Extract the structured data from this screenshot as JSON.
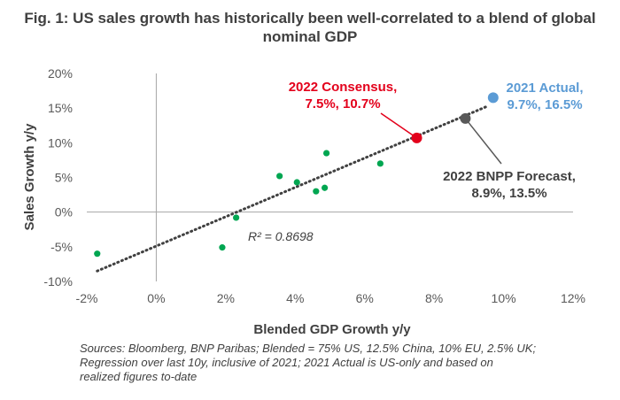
{
  "title_lines": [
    "Fig. 1: US sales growth has historically been well-correlated to a blend of global",
    "nominal GDP"
  ],
  "source_lines": [
    "Sources: Bloomberg, BNP Paribas; Blended = 75% US, 12.5% China, 10% EU, 2.5% UK;",
    "Regression over last 10y, inclusive of 2021; 2021 Actual is US-only and based on",
    "realized figures to-date"
  ],
  "chart_data": {
    "type": "scatter",
    "xlabel": "Blended GDP Growth y/y",
    "ylabel": "Sales Growth y/y",
    "xlim": [
      -2,
      12
    ],
    "ylim": [
      -10,
      20
    ],
    "x_ticks": [
      -2,
      0,
      2,
      4,
      6,
      8,
      10,
      12
    ],
    "y_ticks": [
      -10,
      -5,
      0,
      5,
      10,
      15,
      20
    ],
    "x_tick_labels": [
      "-2%",
      "0%",
      "2%",
      "4%",
      "6%",
      "8%",
      "10%",
      "12%"
    ],
    "y_tick_labels": [
      "-10%",
      "-5%",
      "0%",
      "5%",
      "10%",
      "15%",
      "20%"
    ],
    "series": [
      {
        "color": "#00a651",
        "points": [
          {
            "x": -1.7,
            "y": -6.0
          },
          {
            "x": 1.9,
            "y": -5.1
          },
          {
            "x": 2.3,
            "y": -0.8
          },
          {
            "x": 3.55,
            "y": 5.2
          },
          {
            "x": 4.05,
            "y": 4.3
          },
          {
            "x": 4.6,
            "y": 3.0
          },
          {
            "x": 4.85,
            "y": 3.5
          },
          {
            "x": 4.9,
            "y": 8.5
          },
          {
            "x": 6.45,
            "y": 7.0
          }
        ]
      }
    ],
    "highlights": [
      {
        "lines": [
          "2022 Consensus,",
          "7.5%, 10.7%"
        ],
        "x": 7.5,
        "y": 10.7,
        "color": "#e3001b",
        "label_color": "#e3001b"
      },
      {
        "lines": [
          "2022 BNPP Forecast,",
          "8.9%, 13.5%"
        ],
        "x": 8.9,
        "y": 13.5,
        "color": "#595959",
        "label_color": "#404040"
      },
      {
        "lines": [
          "2021 Actual,",
          "9.7%, 16.5%"
        ],
        "x": 9.7,
        "y": 16.5,
        "color": "#5b9bd5",
        "label_color": "#5b9bd5"
      }
    ],
    "trendline": {
      "x_start": -1.7,
      "y_start": -8.5,
      "x_end": 9.5,
      "y_end": 15.2,
      "color": "#404040",
      "style": "dotted"
    },
    "annotation": "R² = 0.8698",
    "grid": false,
    "legend": "none"
  }
}
